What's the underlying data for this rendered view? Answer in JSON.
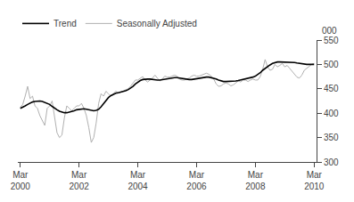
{
  "chart_data": {
    "type": "line",
    "ylabel": "000",
    "categories": [
      "Mar\n2000",
      null,
      null,
      null,
      null,
      null,
      null,
      null,
      null,
      null,
      null,
      null,
      null,
      null,
      null,
      null,
      null,
      null,
      null,
      null,
      null,
      null,
      null,
      null,
      "Mar\n2002",
      null,
      null,
      null,
      null,
      null,
      null,
      null,
      null,
      null,
      null,
      null,
      null,
      null,
      null,
      null,
      null,
      null,
      null,
      null,
      null,
      null,
      null,
      null,
      "Mar\n2004",
      null,
      null,
      null,
      null,
      null,
      null,
      null,
      null,
      null,
      null,
      null,
      null,
      null,
      null,
      null,
      null,
      null,
      null,
      null,
      null,
      null,
      null,
      null,
      "Mar\n2006",
      null,
      null,
      null,
      null,
      null,
      null,
      null,
      null,
      null,
      null,
      null,
      null,
      null,
      null,
      null,
      null,
      null,
      null,
      null,
      null,
      null,
      null,
      null,
      "Mar\n2008",
      null,
      null,
      null,
      null,
      null,
      null,
      null,
      null,
      null,
      null,
      null,
      null,
      null,
      null,
      null,
      null,
      null,
      null,
      null,
      null,
      null,
      null,
      null,
      "Mar\n2010"
    ],
    "series": [
      {
        "name": "Trend",
        "color": "#000000",
        "values": [
          410,
          412,
          415,
          418,
          421,
          423,
          424,
          425,
          425,
          424,
          422,
          420,
          418,
          414,
          410,
          407,
          404,
          402,
          401,
          401,
          402,
          403,
          405,
          407,
          408,
          409,
          409,
          408,
          407,
          406,
          405,
          406,
          408,
          413,
          420,
          427,
          432,
          436,
          439,
          441,
          442,
          443,
          444,
          446,
          448,
          451,
          455,
          460,
          464,
          467,
          469,
          470,
          470,
          470,
          469,
          468,
          468,
          468,
          469,
          470,
          471,
          472,
          473,
          473,
          473,
          472,
          471,
          470,
          469,
          469,
          469,
          470,
          471,
          472,
          473,
          474,
          474,
          474,
          473,
          472,
          470,
          468,
          466,
          465,
          465,
          465,
          465,
          465,
          466,
          467,
          468,
          469,
          470,
          471,
          472,
          474,
          476,
          479,
          483,
          488,
          492,
          496,
          499,
          502,
          504,
          505,
          505,
          505,
          505,
          505,
          505,
          505,
          504,
          503,
          502,
          501,
          500,
          500,
          500,
          500,
          500
        ]
      },
      {
        "name": "Seasonally Adjusted",
        "color": "#b0b0b0",
        "values": [
          412,
          418,
          435,
          455,
          430,
          435,
          415,
          410,
          395,
          385,
          375,
          410,
          415,
          425,
          390,
          360,
          350,
          355,
          390,
          415,
          410,
          405,
          410,
          415,
          415,
          420,
          410,
          395,
          370,
          340,
          350,
          380,
          420,
          440,
          435,
          445,
          440,
          435,
          440,
          445,
          442,
          443,
          445,
          448,
          450,
          455,
          462,
          468,
          468,
          472,
          475,
          468,
          464,
          468,
          472,
          478,
          472,
          466,
          470,
          476,
          474,
          474,
          476,
          478,
          476,
          470,
          468,
          468,
          470,
          472,
          476,
          478,
          476,
          476,
          478,
          480,
          482,
          480,
          476,
          470,
          460,
          455,
          456,
          460,
          462,
          460,
          456,
          458,
          462,
          466,
          464,
          468,
          468,
          465,
          468,
          470,
          468,
          468,
          475,
          490,
          510,
          495,
          488,
          490,
          500,
          495,
          498,
          502,
          495,
          498,
          492,
          486,
          478,
          474,
          472,
          478,
          488,
          492,
          496,
          500,
          502
        ]
      }
    ],
    "ylim": [
      300,
      550
    ],
    "yticks": [
      300,
      350,
      400,
      450,
      500,
      550
    ],
    "grid": false,
    "legend": "upper left"
  }
}
